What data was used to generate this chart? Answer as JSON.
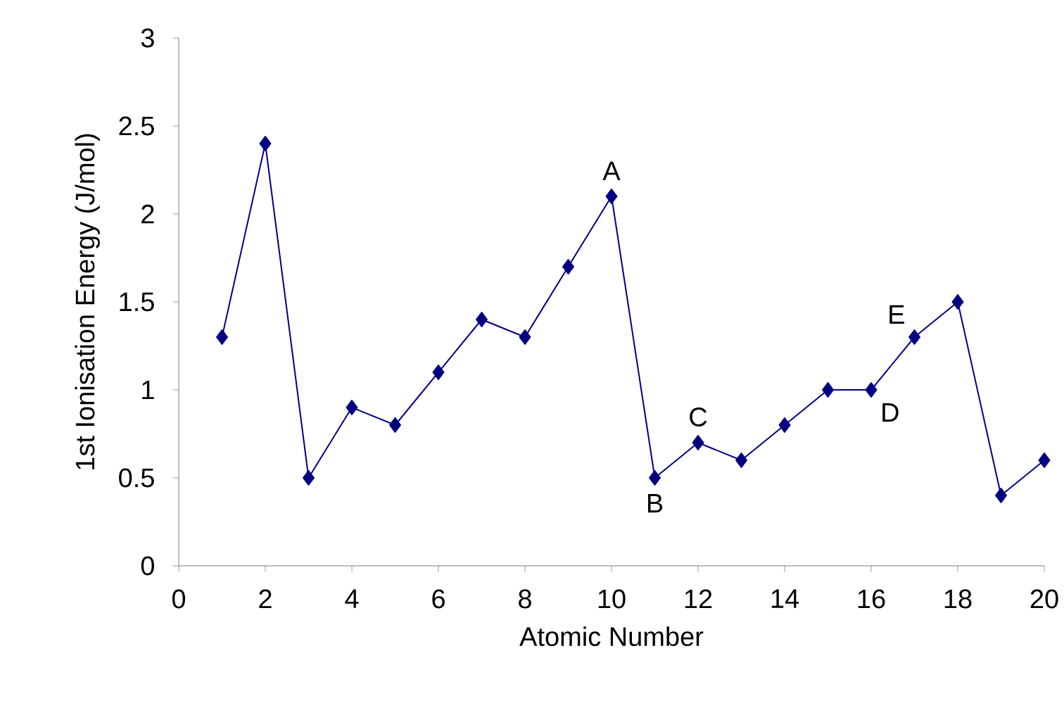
{
  "chart_data": {
    "type": "line",
    "xlabel": "Atomic Number",
    "ylabel": "1st Ionisation Energy (J/mol)",
    "x": [
      1,
      2,
      3,
      4,
      5,
      6,
      7,
      8,
      9,
      10,
      11,
      12,
      13,
      14,
      15,
      16,
      17,
      18,
      19,
      20
    ],
    "series": [
      {
        "color": "#000080",
        "values": [
          1.3,
          2.4,
          0.5,
          0.9,
          0.8,
          1.1,
          1.4,
          1.3,
          1.7,
          2.1,
          0.5,
          0.7,
          0.6,
          0.8,
          1.0,
          1.0,
          1.3,
          1.5,
          0.4,
          0.6
        ]
      }
    ],
    "xlim": [
      0,
      20
    ],
    "xticks": [
      0,
      2,
      4,
      6,
      8,
      10,
      12,
      14,
      16,
      18,
      20
    ],
    "ylim": [
      0,
      3
    ],
    "yticks": [
      0,
      0.5,
      1,
      1.5,
      2,
      2.5,
      3
    ],
    "marker": "diamond",
    "line_style": "solid",
    "grid": false,
    "annotations": [
      {
        "text": "A",
        "x": 10,
        "y": 2.1
      },
      {
        "text": "B",
        "x": 11,
        "y": 0.5
      },
      {
        "text": "C",
        "x": 12,
        "y": 0.7
      },
      {
        "text": "D",
        "x": 16,
        "y": 1.0
      },
      {
        "text": "E",
        "x": 17,
        "y": 1.3
      }
    ]
  }
}
